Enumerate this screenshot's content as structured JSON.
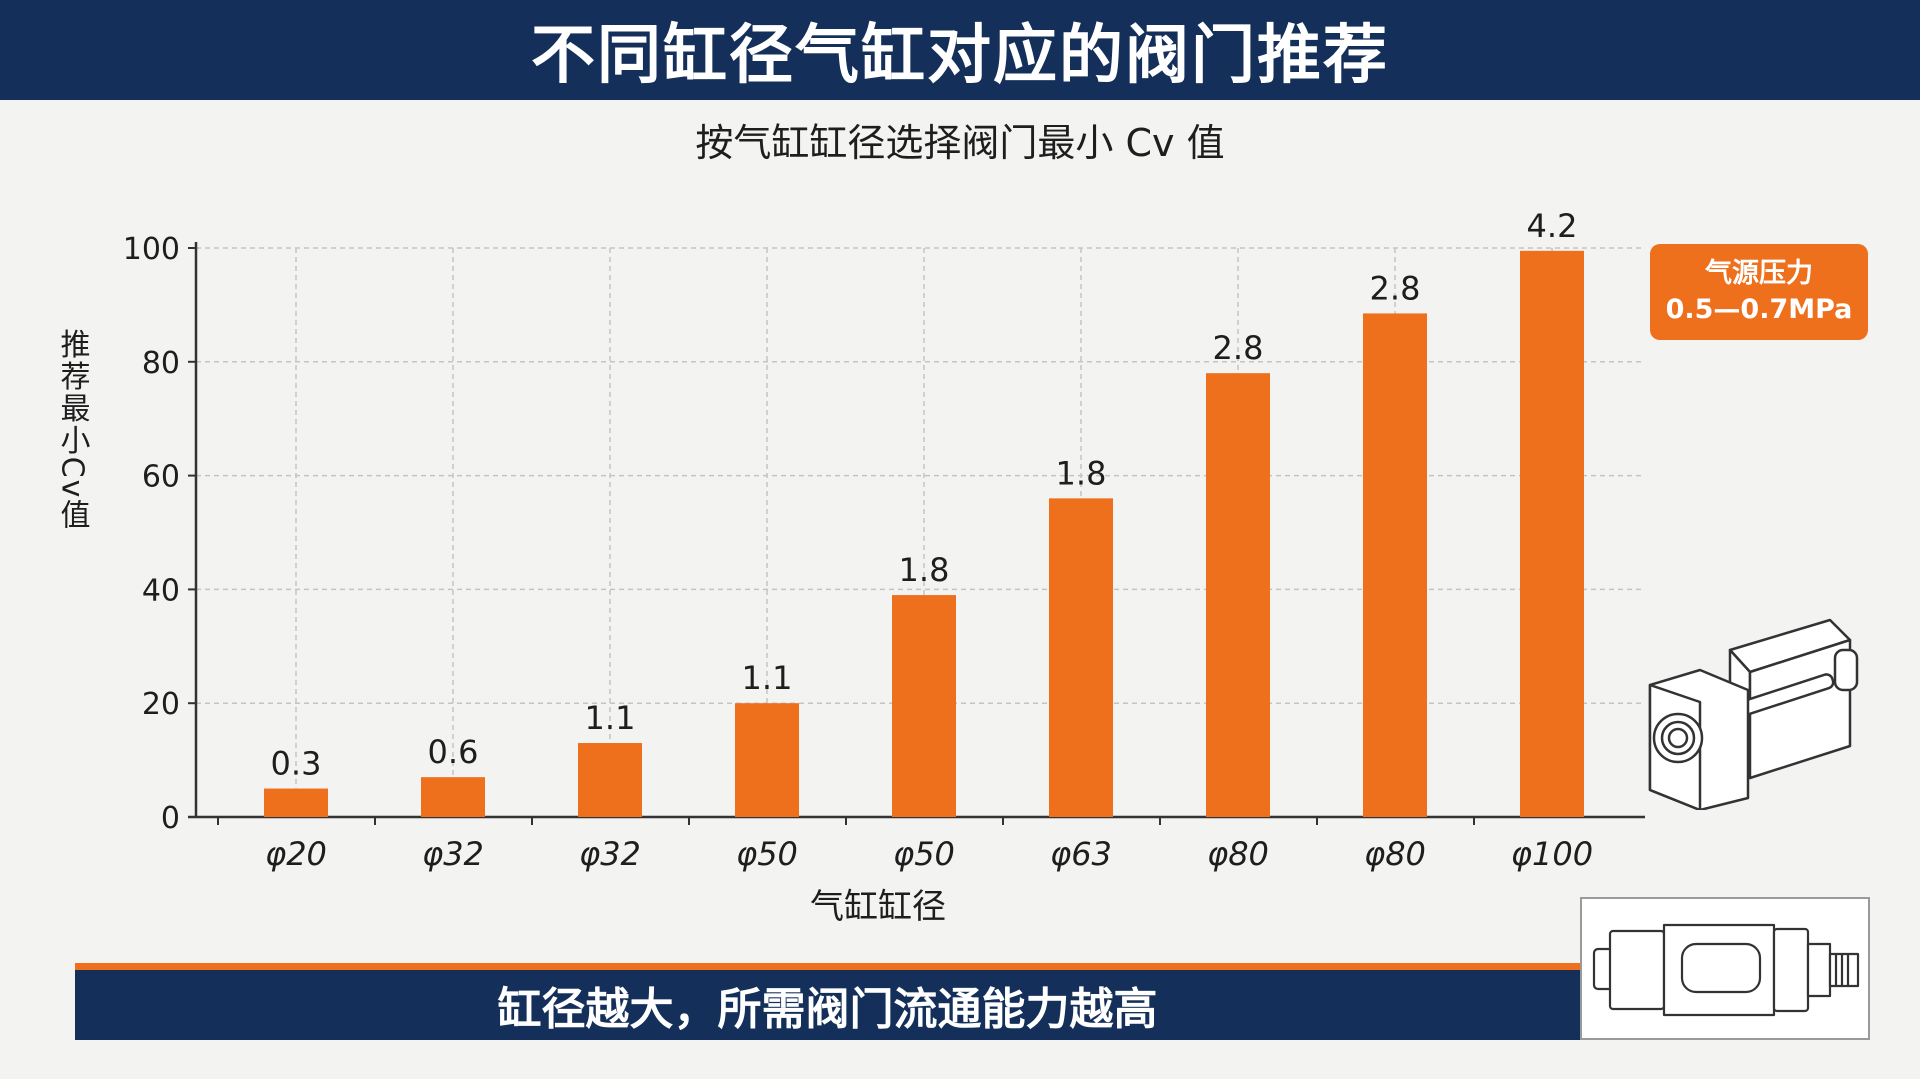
{
  "header": {
    "title": "不同缸径气缸对应的阀门推荐"
  },
  "subtitle": "按气缸缸径选择阀门最小 Cv 值",
  "badge": {
    "line1": "气源压力",
    "line2": "0.5—0.7MPa"
  },
  "footer": {
    "text": "缸径越大，所需阀门流通能力越高"
  },
  "colors": {
    "bar": "#ee6f1c",
    "navy": "#14305a",
    "grid": "#c4c4c4"
  },
  "chart_data": {
    "type": "bar",
    "categories": [
      "φ20",
      "φ32",
      "φ32",
      "φ50",
      "φ50",
      "φ63",
      "φ80",
      "φ80",
      "φ100"
    ],
    "values": [
      5,
      7,
      13,
      20,
      39,
      56,
      78,
      88.5,
      99.5
    ],
    "data_labels": [
      "0.3",
      "0.6",
      "1.1",
      "1.1",
      "1.8",
      "1.8",
      "2.8",
      "2.8",
      "4.2"
    ],
    "ylabel": "推荐最小Cv值",
    "xlabel": "气缸缸径",
    "ylim": [
      0,
      100
    ],
    "yticks": [
      0,
      20,
      40,
      60,
      80,
      100
    ],
    "grid": true
  }
}
